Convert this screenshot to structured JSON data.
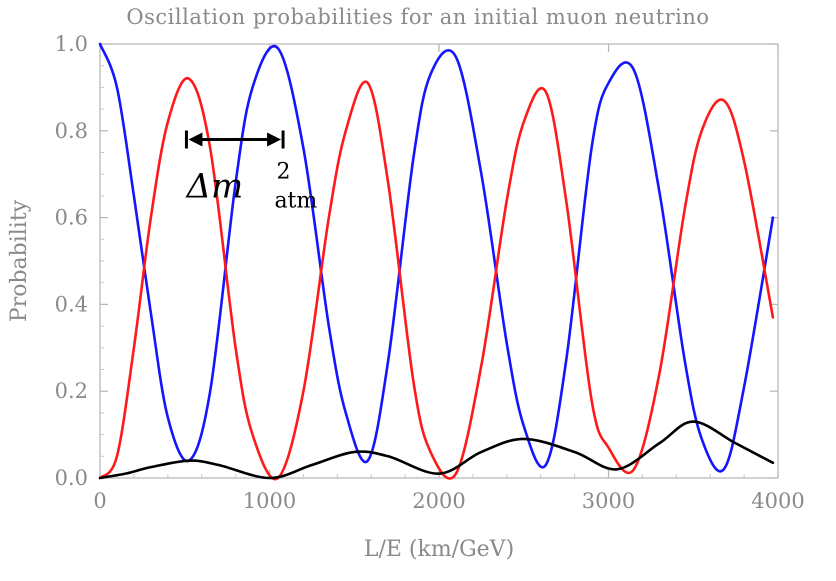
{
  "chart_data": {
    "type": "line",
    "title": "Oscillation probabilities for an initial muon neutrino",
    "xlabel": "L/E (km/GeV)",
    "ylabel": "Probability",
    "xlim": [
      0,
      4000
    ],
    "ylim": [
      0,
      1.0
    ],
    "x_ticks": [
      "0",
      "1000",
      "2000",
      "3000",
      "4000"
    ],
    "y_ticks": [
      "0.0",
      "0.2",
      "0.4",
      "0.6",
      "0.8",
      "1.0"
    ],
    "grid": false,
    "legend": "none",
    "series": [
      {
        "color": "#1515ff",
        "x": [
          0,
          100,
          200,
          300,
          400,
          525,
          650,
          800,
          900,
          1050,
          1200,
          1350,
          1450,
          1580,
          1700,
          1850,
          1950,
          2100,
          2250,
          2400,
          2500,
          2630,
          2750,
          2900,
          3000,
          3150,
          3300,
          3450,
          3550,
          3680,
          3800,
          3970
        ],
        "y": [
          1.0,
          0.9,
          0.65,
          0.38,
          0.14,
          0.04,
          0.2,
          0.68,
          0.9,
          0.99,
          0.76,
          0.35,
          0.15,
          0.04,
          0.27,
          0.74,
          0.93,
          0.97,
          0.7,
          0.31,
          0.12,
          0.03,
          0.27,
          0.76,
          0.91,
          0.94,
          0.66,
          0.27,
          0.09,
          0.02,
          0.21,
          0.6
        ]
      },
      {
        "color": "#ff1a1a",
        "x": [
          0,
          100,
          200,
          300,
          400,
          525,
          650,
          800,
          900,
          1050,
          1200,
          1350,
          1450,
          1580,
          1700,
          1850,
          1950,
          2100,
          2250,
          2400,
          2500,
          2630,
          2750,
          2900,
          3000,
          3150,
          3300,
          3450,
          3550,
          3680,
          3800,
          3970
        ],
        "y": [
          0.0,
          0.05,
          0.3,
          0.6,
          0.82,
          0.92,
          0.76,
          0.3,
          0.1,
          0.0,
          0.2,
          0.6,
          0.8,
          0.91,
          0.68,
          0.22,
          0.06,
          0.01,
          0.26,
          0.64,
          0.82,
          0.89,
          0.64,
          0.18,
          0.07,
          0.02,
          0.24,
          0.62,
          0.8,
          0.87,
          0.73,
          0.37
        ]
      },
      {
        "color": "#000000",
        "x": [
          0,
          150,
          300,
          525,
          700,
          1000,
          1250,
          1500,
          1700,
          2000,
          2250,
          2500,
          2800,
          3050,
          3300,
          3500,
          3750,
          3970
        ],
        "y": [
          0.0,
          0.01,
          0.025,
          0.04,
          0.03,
          0.0,
          0.03,
          0.06,
          0.05,
          0.01,
          0.06,
          0.09,
          0.06,
          0.02,
          0.08,
          0.13,
          0.08,
          0.035
        ]
      }
    ],
    "annotation": {
      "symbol": "Δm",
      "superscript": "2",
      "subscript": "atm",
      "x_start": 510,
      "x_end": 1080,
      "y": 0.78
    }
  }
}
